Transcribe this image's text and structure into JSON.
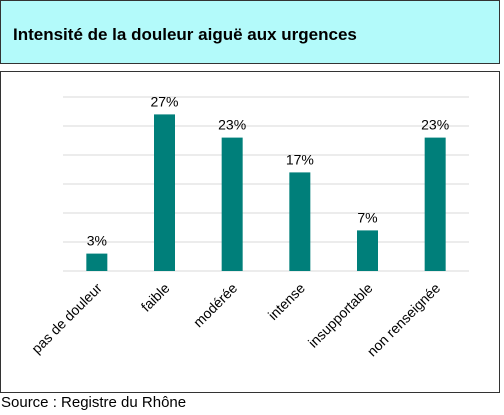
{
  "chart_data": {
    "type": "bar",
    "title": "Intensité de la douleur aiguë aux urgences",
    "categories": [
      "pas de douleur",
      "faible",
      "modérée",
      "intense",
      "insupportable",
      "non renseignée"
    ],
    "values": [
      3,
      27,
      23,
      17,
      7,
      23
    ],
    "value_labels": [
      "3%",
      "27%",
      "23%",
      "17%",
      "7%",
      "23%"
    ],
    "unit": "%",
    "ylim": [
      0,
      30
    ],
    "grid": true,
    "legend": "none",
    "bar_color": "#007f7a",
    "xlabel": "",
    "ylabel": ""
  },
  "header": {
    "title": "Intensité de la douleur aiguë aux urgences",
    "background": "#b3fafa"
  },
  "footer": {
    "source": "Source : Registre du Rhône"
  }
}
